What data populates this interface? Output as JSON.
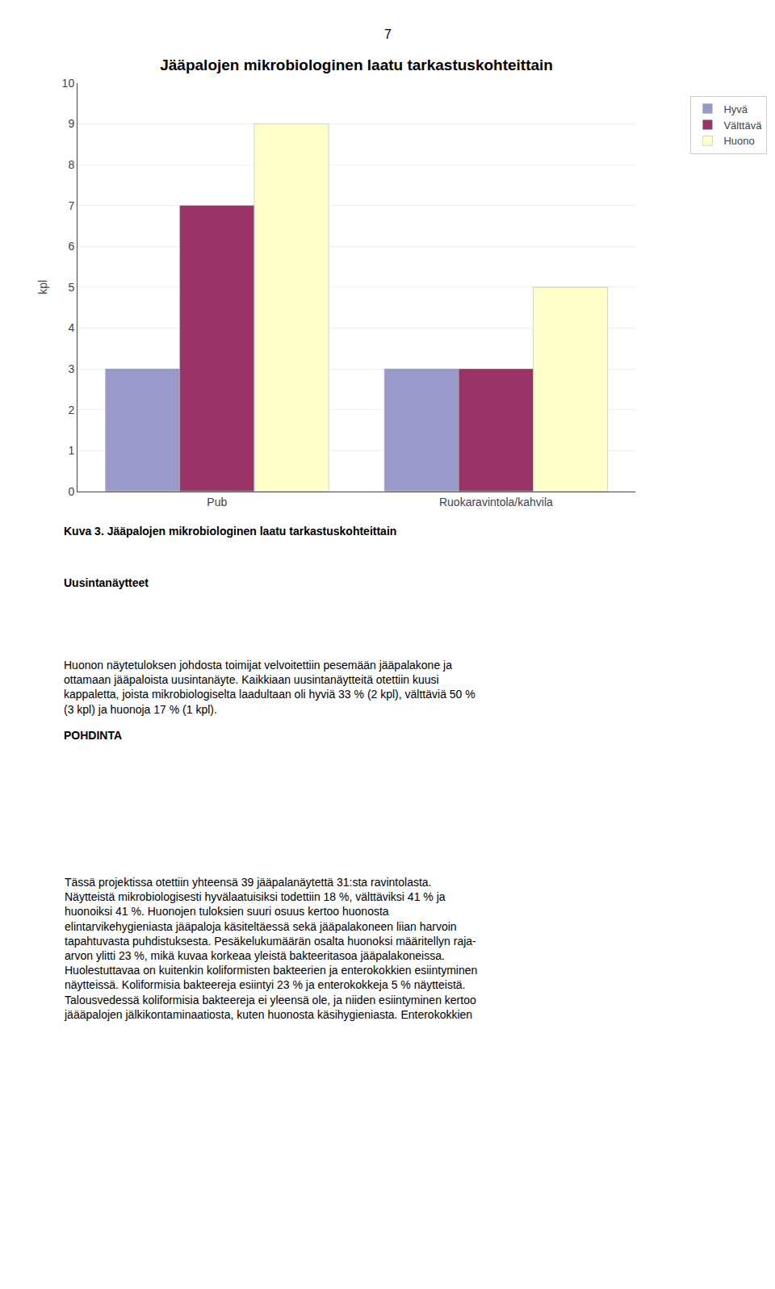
{
  "chart_data": {
    "type": "bar",
    "title": "Jääpalojen mikrobiologinen laatu tarkastuskohteittain",
    "ylabel": "kpl",
    "categories": [
      "Pub",
      "Ruokaravintola/kahvila"
    ],
    "series": [
      {
        "name": "Hyvä",
        "color": "#9999CC",
        "values": [
          3,
          3
        ]
      },
      {
        "name": "Välttävä",
        "color": "#993366",
        "values": [
          7,
          3
        ]
      },
      {
        "name": "Huono",
        "color": "#FFFFCC",
        "values": [
          9,
          5
        ]
      }
    ],
    "ylim": [
      0,
      10
    ],
    "yticks": [
      0,
      1,
      2,
      3,
      4,
      5,
      6,
      7,
      8,
      9,
      10
    ],
    "grid": true,
    "legend": "upper right",
    "annotations": [
      "7",
      "Kuva 3. Jääpalojen mikrobiologinen laatu tarkastuskohteittain",
      "Uusintanäytteet",
      "Huonon näytetuloksen johdosta toimijat velvoitettiin pesemään jääpalakone ja\nottamaan jääpaloista uusintanäyte. Kaikkiaan uusintanäytteitä otettiin kuusi\nkappaletta, joista mikrobiologiselta laadultaan oli hyviä 33 % (2 kpl), välttäviä 50 %\n(3 kpl) ja huonoja 17 % (1 kpl).",
      "POHDINTA",
      "Tässä projektissa otettiin yhteensä 39 jääpalanäytettä 31:sta ravintolasta.\nNäytteistä mikrobiologisesti hyvälaatuisiksi todettiin 18 %, välttäviksi 41 % ja\nhuonoiksi 41 %. Huonojen tuloksien suuri osuus kertoo huonosta\nelintarvikehygieniasta jääpaloja käsiteltäessä sekä jääpalakoneen liian harvoin\ntapahtuvasta puhdistuksesta. Pesäkelukumäärän osalta huonoksi määritellyn raja-\narvon ylitti 23 %, mikä kuvaa korkeaa yleistä bakteeritasoa jääpalakoneissa.\nHuolestuttavaa on kuitenkin koliformisten bakteerien ja enterokokkien esiintyminen\nnäytteissä. Koliformisia bakteereja esiintyi 23 % ja enterokokkeja 5 % näytteistä.\nTalousvedessä koliformisia bakteereja ei yleensä ole, ja niiden esiintyminen kertoo\njäääpalojen jälkikontaminaatiosta, kuten huonosta käsihygieniasta. Enterokokkien"
    ]
  }
}
